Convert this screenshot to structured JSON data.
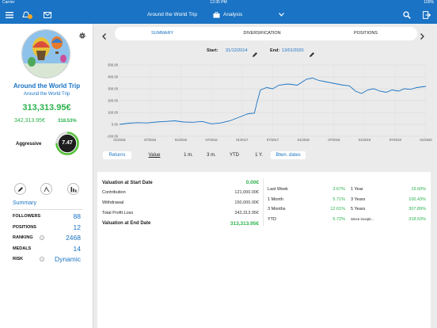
{
  "status": {
    "carrier": "Carrier",
    "time": "12:35 PM",
    "battery": "100%"
  },
  "nav": {
    "title": "Around the World Trip",
    "section": "Analysis"
  },
  "portfolio": {
    "name": "Around the World Trip",
    "subtitle": "Around the World Trip",
    "value": "313,313.95€",
    "invested": "342,313.95€",
    "pct": "318.53%",
    "risk_label": "Aggressive",
    "risk_score": "7.47",
    "score_fraction": 0.75
  },
  "summary_link": "Summary",
  "stats": [
    {
      "label": "FOLLOWERS",
      "value": "88",
      "help": false
    },
    {
      "label": "POSITIONS",
      "value": "12",
      "help": false
    },
    {
      "label": "RANKING",
      "value": "2468",
      "help": true
    },
    {
      "label": "MEDALS",
      "value": "14",
      "help": false
    },
    {
      "label": "RISK",
      "value": "Dynamic",
      "help": true
    }
  ],
  "tabs": [
    "SUMMARY",
    "DIVERSIFICATION",
    "POSITIONS"
  ],
  "dates": {
    "start_label": "Start:",
    "start": "31/12/2014",
    "end_label": "End:",
    "end": "13/01/2020"
  },
  "chart_data": {
    "type": "line",
    "ylim": [
      -100,
      500
    ],
    "yticks": [
      "500.00",
      "400.00",
      "300.00",
      "200.00",
      "100.00",
      "0.00",
      "-100.00"
    ],
    "xticks": [
      "01/2015",
      "07/2015",
      "01/2016",
      "07/2016",
      "01/2017",
      "07/2017",
      "01/2018",
      "07/2018",
      "01/2019",
      "07/2019",
      "01/2020"
    ],
    "series": [
      {
        "color": "#1a73c4",
        "x": [
          0,
          0.03,
          0.06,
          0.09,
          0.12,
          0.15,
          0.18,
          0.21,
          0.24,
          0.27,
          0.3,
          0.33,
          0.36,
          0.38,
          0.4,
          0.42,
          0.44,
          0.45,
          0.46,
          0.48,
          0.5,
          0.52,
          0.55,
          0.58,
          0.61,
          0.63,
          0.65,
          0.67,
          0.69,
          0.71,
          0.73,
          0.75,
          0.77,
          0.79,
          0.81,
          0.83,
          0.85,
          0.87,
          0.89,
          0.91,
          0.93,
          0.95,
          0.97,
          1.0
        ],
        "y": [
          0,
          10,
          15,
          12,
          20,
          25,
          30,
          20,
          18,
          25,
          5,
          12,
          30,
          50,
          70,
          90,
          95,
          200,
          290,
          310,
          300,
          330,
          340,
          330,
          380,
          390,
          370,
          360,
          350,
          340,
          330,
          325,
          280,
          260,
          290,
          300,
          280,
          270,
          290,
          280,
          300,
          295,
          310,
          320
        ]
      }
    ]
  },
  "periods": {
    "returns": "Returns",
    "value": "Value",
    "m1": "1 m.",
    "m3": "3 m.",
    "ytd": "YTD",
    "y1": "1 Y.",
    "between": "Btwn. dates"
  },
  "valuation": {
    "start_label": "Valuation at Start Date",
    "start_value": "0.00€",
    "rows": [
      {
        "label": "Contribution",
        "value": "121,000.00€"
      },
      {
        "label": "Withdrawal",
        "value": "150,000.00€"
      },
      {
        "label": "Total Profit Loss",
        "value": "342,313.95€"
      }
    ],
    "end_label": "Valuation at End Date",
    "end_value": "313,313.95€"
  },
  "returns_left": [
    {
      "label": "Last Week",
      "value": "3.67%"
    },
    {
      "label": "1 Month",
      "value": "5.71%"
    },
    {
      "label": "3 Months",
      "value": "12.61%"
    },
    {
      "label": "YTD",
      "value": "5.72%"
    }
  ],
  "returns_right": [
    {
      "label": "1 Year",
      "value": "19.60%"
    },
    {
      "label": "3 Years",
      "value": "100.43%"
    },
    {
      "label": "5 Years",
      "value": "307.89%"
    },
    {
      "label": "Since incepti...",
      "value": "318.53%"
    }
  ]
}
